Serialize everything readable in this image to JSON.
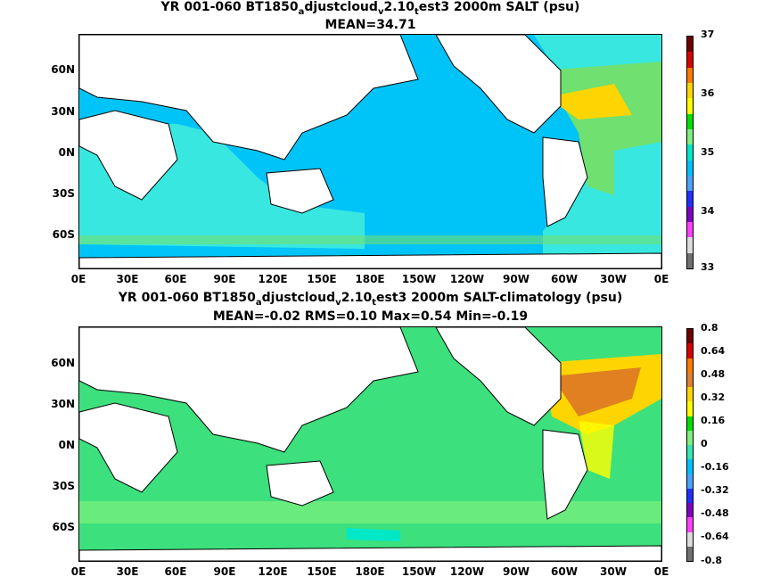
{
  "panels": [
    {
      "title_parts": [
        "YR 001-060 BT1850",
        "a",
        "djustcloud",
        "v",
        "2.10",
        "t",
        "est3 2000m SALT (psu)"
      ],
      "stats": "MEAN=34.71",
      "colorbar_labels": [
        "37",
        "36",
        "35",
        "34",
        "33"
      ],
      "colorbar_colors": [
        "#6e0000",
        "#d80000",
        "#ff7a00",
        "#ffd500",
        "#ffff00",
        "#00e000",
        "#7ef07e",
        "#00e8c8",
        "#00c0ff",
        "#4aa4ff",
        "#2030ff",
        "#8000c0",
        "#ff40ff",
        "#dcdcdc",
        "#707070"
      ],
      "ocean_color": "#00c4f8",
      "indian_color": "#38e8e0",
      "atlantic_color": "#70e070"
    },
    {
      "title_parts": [
        "YR 001-060 BT1850",
        "a",
        "djustcloud",
        "v",
        "2.10",
        "t",
        "est3 2000m SALT-climatology (psu)"
      ],
      "stats": "MEAN=-0.02   RMS=0.10   Max=0.54   Min=-0.19",
      "colorbar_labels": [
        "0.8",
        "0.64",
        "0.48",
        "0.32",
        "0.16",
        "0",
        "-0.16",
        "-0.32",
        "-0.48",
        "-0.64",
        "-0.8"
      ],
      "colorbar_colors": [
        "#6e0000",
        "#d80000",
        "#ff7a00",
        "#e08030",
        "#ffd500",
        "#ffff00",
        "#00e000",
        "#7ef07e",
        "#38e8b0",
        "#00c0ff",
        "#4aa4ff",
        "#2030ff",
        "#8000c0",
        "#ff40ff",
        "#dcdcdc",
        "#707070"
      ],
      "ocean_color": "#3ce07c",
      "atlantic_color": "#e08020"
    }
  ],
  "lat_ticks": [
    "60N",
    "30N",
    "0N",
    "30S",
    "60S"
  ],
  "lon_ticks": [
    "0E",
    "30E",
    "60E",
    "90E",
    "120E",
    "150E",
    "180E",
    "150W",
    "120W",
    "90W",
    "60W",
    "30W",
    "0E"
  ]
}
